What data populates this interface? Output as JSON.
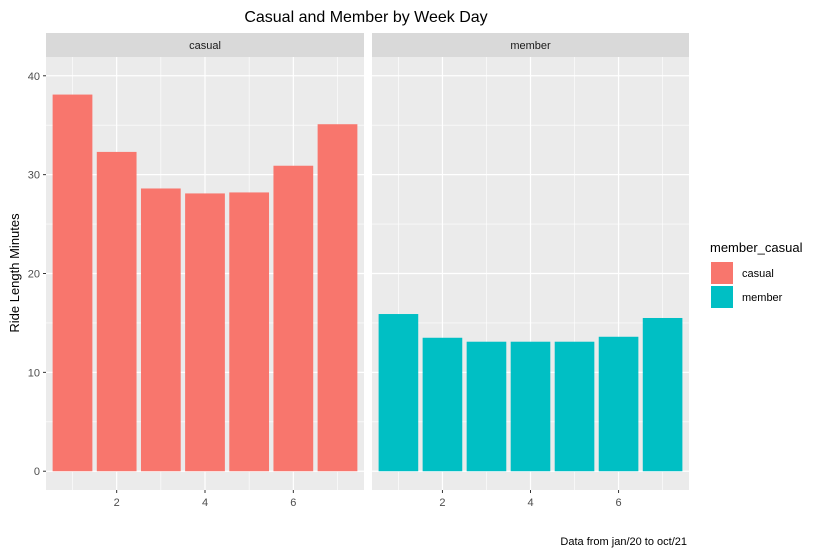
{
  "chart_data": {
    "type": "bar",
    "title": "Casual and Member by Week Day",
    "xlabel": "",
    "ylabel": "Ride Length Minutes",
    "caption": "Data from jan/20 to oct/21",
    "x": [
      1,
      2,
      3,
      4,
      5,
      6,
      7
    ],
    "xlim": [
      0.4,
      7.6
    ],
    "x_ticks": [
      2,
      4,
      6
    ],
    "ylim": [
      -1.9,
      41.9
    ],
    "y_ticks": [
      0,
      10,
      20,
      30,
      40
    ],
    "facets": [
      {
        "name": "casual",
        "color": "#F8766D",
        "values": [
          38.1,
          32.3,
          28.6,
          28.1,
          28.2,
          30.9,
          35.1
        ]
      },
      {
        "name": "member",
        "color": "#00BFC4",
        "values": [
          15.9,
          13.5,
          13.1,
          13.1,
          13.1,
          13.6,
          15.5
        ]
      }
    ],
    "legend": {
      "title": "member_casual",
      "placement": "right",
      "entries": [
        {
          "label": "casual",
          "color": "#F8766D"
        },
        {
          "label": "member",
          "color": "#00BFC4"
        }
      ]
    },
    "panel_background": "#EBEBEB",
    "strip_background": "#D9D9D9",
    "grid": true
  }
}
